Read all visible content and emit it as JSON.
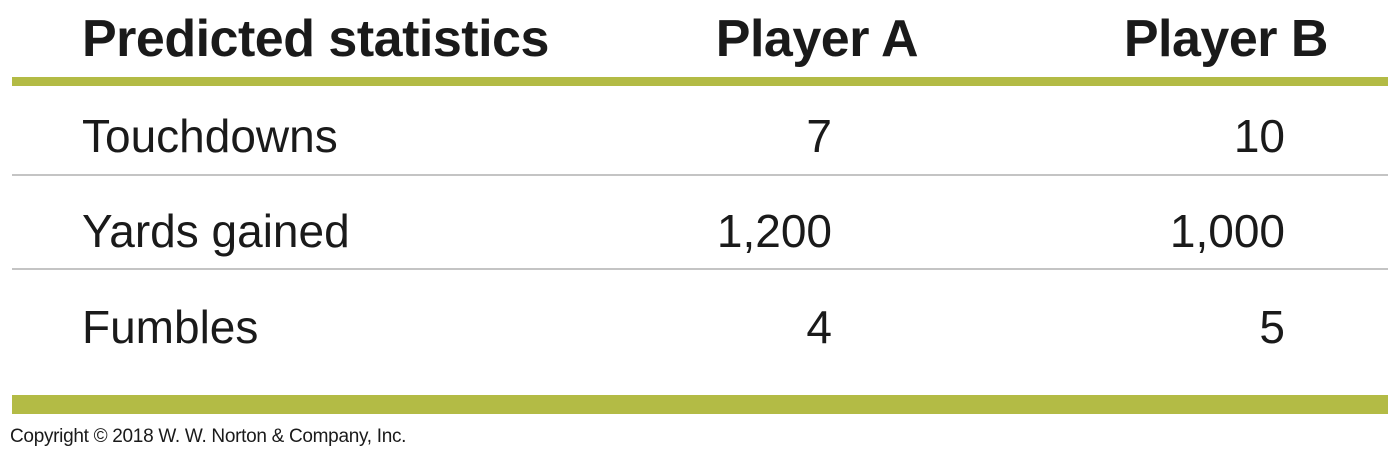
{
  "table": {
    "headers": [
      "Predicted statistics",
      "Player A",
      "Player B"
    ],
    "rows": [
      {
        "label": "Touchdowns",
        "a": "7",
        "b": "10"
      },
      {
        "label": "Yards gained",
        "a": "1,200",
        "b": "1,000"
      },
      {
        "label": "Fumbles",
        "a": "4",
        "b": "5"
      }
    ]
  },
  "footer": {
    "copyright": "Copyright © 2018 W. W. Norton & Company, Inc."
  },
  "colors": {
    "accent_bar": "#b3bb45",
    "divider": "#c4c4c4",
    "text": "#1a1a1a"
  }
}
